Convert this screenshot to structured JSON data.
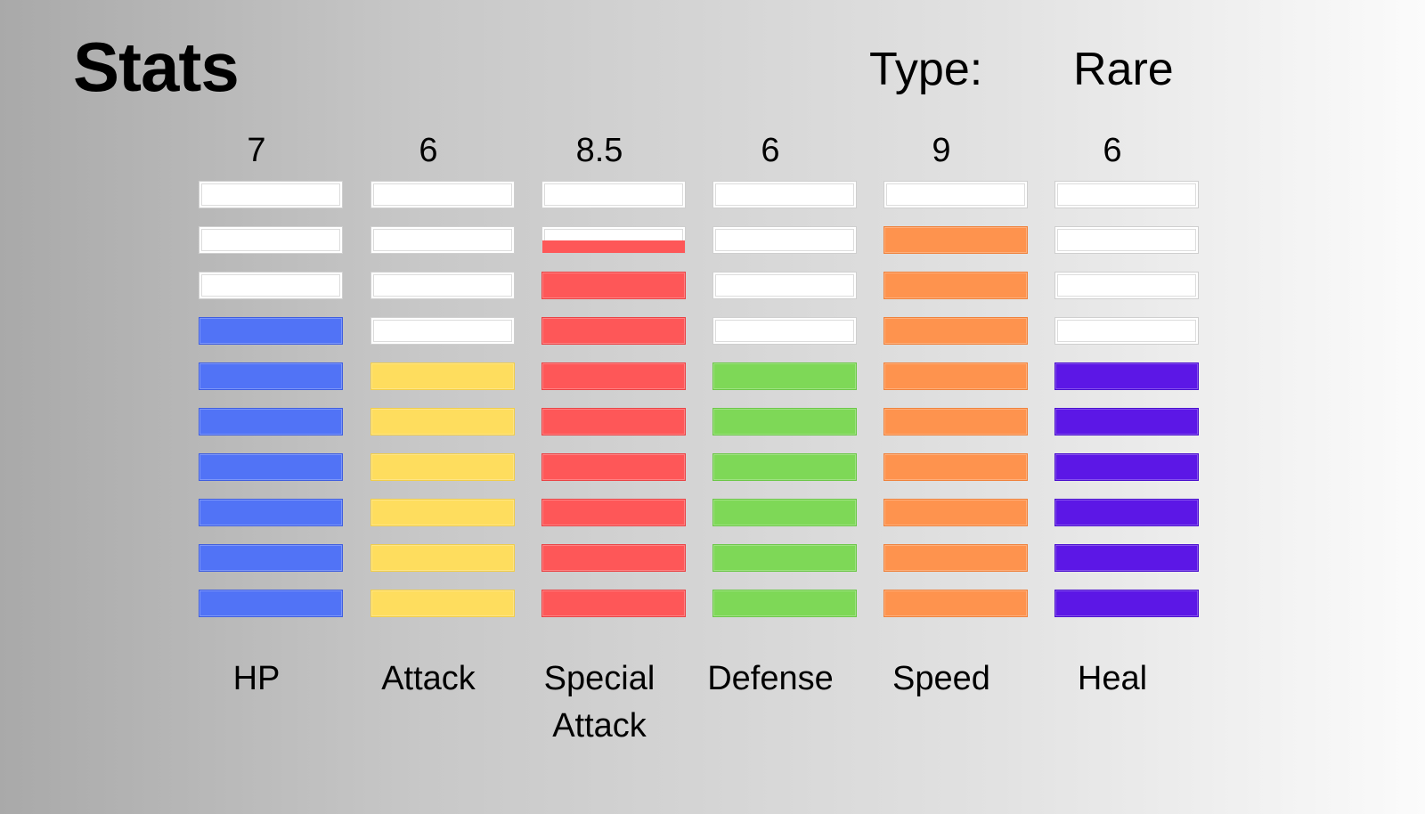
{
  "title": "Stats",
  "type_label": "Type:",
  "type_value": "Rare",
  "max_bars": 10,
  "stats": [
    {
      "name": "HP",
      "value_text": "7",
      "value": 7,
      "color": "#5173f6",
      "border": "#3f5ee0"
    },
    {
      "name": "Attack",
      "value_text": "6",
      "value": 6,
      "color": "#fedd5e",
      "border": "#f0cd4a"
    },
    {
      "name": "Special Attack",
      "value_text": "8.5",
      "value": 8.5,
      "color": "#fe5758",
      "border": "#ea4345"
    },
    {
      "name": "Defense",
      "value_text": "6",
      "value": 6,
      "color": "#7ed857",
      "border": "#6cc748"
    },
    {
      "name": "Speed",
      "value_text": "9",
      "value": 9,
      "color": "#fe934e",
      "border": "#ef823c"
    },
    {
      "name": "Heal",
      "value_text": "6",
      "value": 6,
      "color": "#5c17e6",
      "border": "#4a0fcf"
    }
  ]
}
